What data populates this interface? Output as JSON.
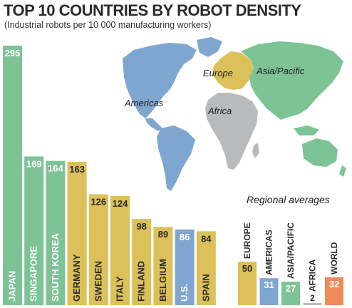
{
  "colors": {
    "asia": "#7dc395",
    "europe": "#dcc05a",
    "americas": "#7ea6cf",
    "africa": "#b8babc",
    "world": "#ee8a57"
  },
  "header": {
    "title": "TOP 10 COUNTRIES BY ROBOT DENSITY",
    "subtitle": "(Industrial robots per 10 000 manufacturing workers)"
  },
  "map": {
    "labels": [
      "Europe",
      "Asia/Pacific",
      "Americas",
      "Africa"
    ]
  },
  "chart_data": [
    {
      "type": "bar",
      "title": "TOP 10 COUNTRIES BY ROBOT DENSITY",
      "subtitle": "(Industrial robots per 10 000 manufacturing workers)",
      "categories": [
        "JAPAN",
        "SINGAPORE",
        "SOUTH KOREA",
        "GERMANY",
        "SWEDEN",
        "ITALY",
        "FINLAND",
        "BELGIUM",
        "U.S.",
        "SPAIN"
      ],
      "values": [
        295,
        169,
        164,
        163,
        126,
        124,
        98,
        89,
        86,
        84
      ],
      "regions": [
        "Asia/Pacific",
        "Asia/Pacific",
        "Asia/Pacific",
        "Europe",
        "Europe",
        "Europe",
        "Europe",
        "Europe",
        "Americas",
        "Europe"
      ],
      "ylim": [
        0,
        300
      ]
    },
    {
      "type": "bar",
      "title": "Regional averages",
      "categories": [
        "EUROPE",
        "AMERICAS",
        "ASIA/PACIFIC",
        "AFRICA",
        "WORLD"
      ],
      "values": [
        50,
        31,
        27,
        2,
        32
      ],
      "regions": [
        "Europe",
        "Americas",
        "Asia/Pacific",
        "Africa",
        "World"
      ]
    }
  ]
}
